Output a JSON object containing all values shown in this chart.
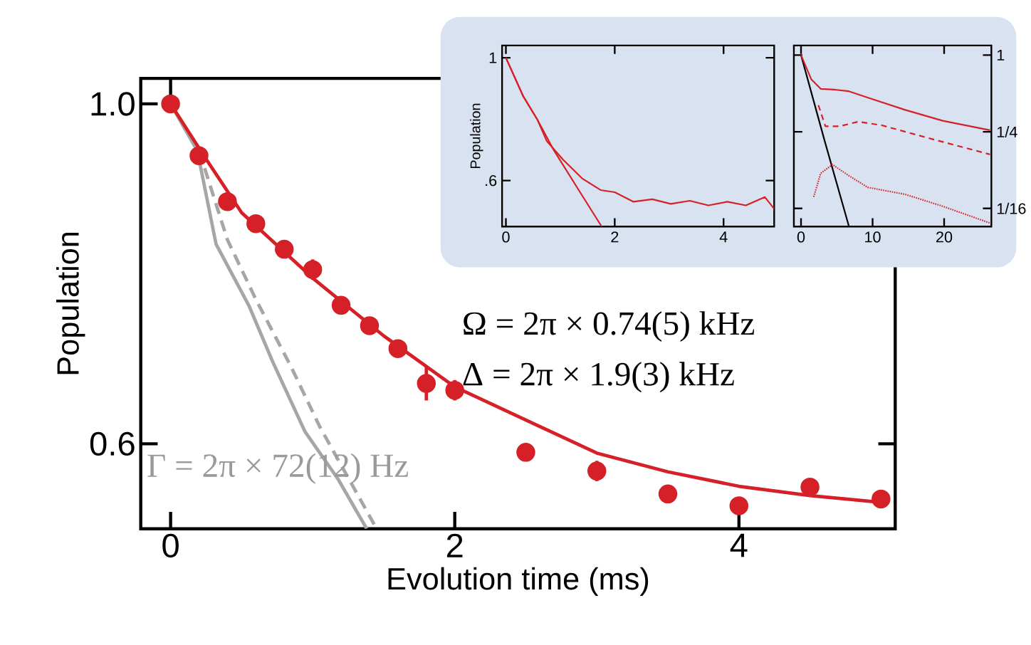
{
  "chart_data": [
    {
      "type": "line",
      "xlabel": "Evolution time (ms)",
      "ylabel": "Population",
      "xlim": [
        -0.21,
        5.1
      ],
      "ylim": [
        0.5,
        1.03
      ],
      "xticks": [
        0,
        2,
        4
      ],
      "yticks": [
        {
          "value": 1.0,
          "label": "1.0"
        },
        0.6
      ],
      "annotations": [
        "Ω = 2π × 0.74(5) kHz",
        "Δ = 2π × 1.9(3) kHz",
        "Γ = 2π × 72(12) Hz"
      ],
      "series": [
        {
          "color": "#a6a6a6",
          "line_style": "solid",
          "x": [
            0,
            0.188,
            0.32,
            0.55,
            0.72,
            0.947,
            1.18,
            1.38
          ],
          "values": [
            1.0,
            0.945,
            0.835,
            0.763,
            0.696,
            0.614,
            0.558,
            0.5
          ]
        },
        {
          "color": "#a6a6a6",
          "line_style": "dashed",
          "x": [
            0,
            0.2,
            0.4,
            0.6,
            0.85,
            1.05,
            1.25,
            1.45
          ],
          "values": [
            1.0,
            0.945,
            0.84,
            0.77,
            0.69,
            0.62,
            0.56,
            0.5
          ]
        },
        {
          "color": "#d62027",
          "line_style": "solid",
          "x": [
            0,
            0.25,
            0.5,
            1,
            1.5,
            2,
            2.5,
            3,
            3.5,
            4,
            4.5,
            5
          ],
          "values": [
            1.0,
            0.935,
            0.872,
            0.795,
            0.727,
            0.667,
            0.628,
            0.589,
            0.567,
            0.55,
            0.539,
            0.531
          ]
        },
        {
          "type": "scatter",
          "color": "#d62027",
          "x": [
            0,
            0.2,
            0.4,
            0.6,
            0.8,
            1.0,
            1.2,
            1.4,
            1.6,
            1.8,
            2.0,
            2.5,
            3.0,
            3.5,
            4.0,
            4.5,
            5.0
          ],
          "values": [
            1.0,
            0.939,
            0.885,
            0.859,
            0.829,
            0.805,
            0.763,
            0.739,
            0.712,
            0.671,
            0.663,
            0.59,
            0.568,
            0.541,
            0.527,
            0.549,
            0.535
          ],
          "errors": [
            null,
            null,
            null,
            null,
            null,
            0.012,
            null,
            null,
            null,
            0.02,
            0.012,
            null,
            0.012,
            null,
            null,
            null,
            null
          ]
        }
      ]
    },
    {
      "type": "line",
      "ylabel": "Population",
      "xlim": [
        -0.07,
        4.93
      ],
      "ylim": [
        0.45,
        1.04
      ],
      "xticks": [
        0,
        2,
        4
      ],
      "yticks": [
        1,
        {
          "value": 0.6,
          "label": ".6"
        }
      ],
      "series": [
        {
          "color": "#d62027",
          "line_style": "solid",
          "x": [
            0,
            0.32,
            0.58,
            0.88,
            1.31,
            1.76
          ],
          "values": [
            1.0,
            0.874,
            0.798,
            0.699,
            0.577,
            0.45
          ]
        },
        {
          "color": "#d62027",
          "line_style": "solid",
          "x": [
            0,
            0.32,
            0.58,
            0.75,
            1.05,
            1.4,
            1.74,
            2.0,
            2.34,
            2.69,
            3.03,
            3.38,
            3.72,
            4.07,
            4.41,
            4.76,
            4.93
          ],
          "values": [
            1.0,
            0.874,
            0.798,
            0.729,
            0.668,
            0.607,
            0.569,
            0.562,
            0.531,
            0.539,
            0.524,
            0.534,
            0.519,
            0.531,
            0.519,
            0.546,
            0.508
          ]
        }
      ]
    },
    {
      "type": "line",
      "log": "y",
      "xlim": [
        -1,
        26.6
      ],
      "ylim": [
        0.045,
        1.19
      ],
      "xticks": [
        0,
        10,
        20
      ],
      "yticks": [
        1,
        {
          "value": 0.25,
          "label": "1/4"
        },
        {
          "value": 0.0625,
          "label": "1/16"
        }
      ],
      "series": [
        {
          "color": "#000000",
          "line_style": "solid",
          "x": [
            0,
            3.28,
            6.69
          ],
          "values": [
            1.0,
            0.214,
            0.0453
          ]
        },
        {
          "color": "#d62027",
          "line_style": "solid",
          "x": [
            0,
            1.44,
            2.75,
            4.72,
            6.69,
            9.97,
            14.56,
            19.8,
            26.4
          ],
          "values": [
            1.0,
            0.644,
            0.543,
            0.535,
            0.52,
            0.451,
            0.371,
            0.305,
            0.257
          ]
        },
        {
          "color": "#d62027",
          "line_style": "dashed",
          "x": [
            2.43,
            3.41,
            5.38,
            8.0,
            11.28,
            17.8,
            26.4
          ],
          "values": [
            0.404,
            0.276,
            0.276,
            0.3,
            0.281,
            0.223,
            0.166
          ]
        },
        {
          "color": "#d62027",
          "line_style": "dotted",
          "x": [
            1.77,
            2.75,
            4.39,
            6.69,
            9.31,
            14.56,
            19.8,
            26.4
          ],
          "values": [
            0.077,
            0.118,
            0.138,
            0.113,
            0.0915,
            0.0806,
            0.065,
            0.048
          ]
        }
      ]
    }
  ]
}
